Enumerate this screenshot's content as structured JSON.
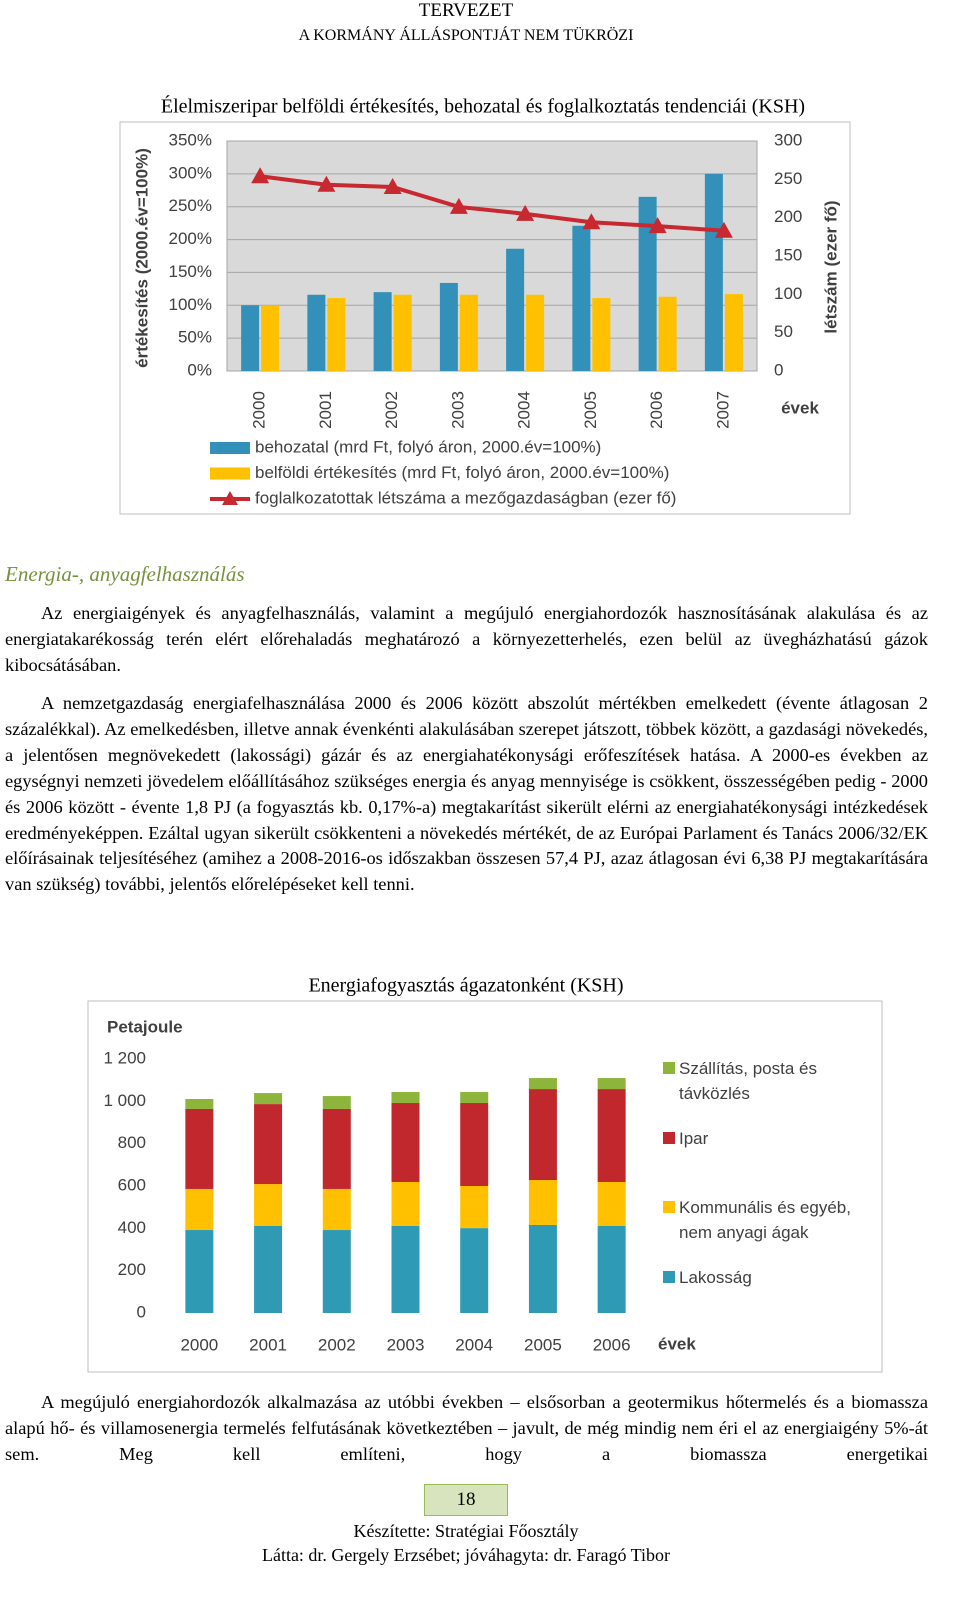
{
  "header": {
    "line1": "TERVEZET",
    "line2": "A KORMÁNY ÁLLÁSPONTJÁT NEM TÜKRÖZI"
  },
  "chart_data": [
    {
      "type": "bar_line",
      "title": "Élelmiszeripar belföldi értékesítés, behozatal és foglalkoztatás tendenciái (KSH)",
      "y_axis_label": "értékesítés (2000.év=100%)",
      "y2_axis_label": "létszám (ezer fő)",
      "x_axis_label": "évek",
      "categories": [
        "2000",
        "2001",
        "2002",
        "2003",
        "2004",
        "2005",
        "2006",
        "2007"
      ],
      "series": [
        {
          "name": "behozatal (mrd Ft, folyó áron, 2000.év=100%)",
          "color": "#3390b8",
          "type": "bar",
          "values": [
            100,
            116,
            120,
            134,
            186,
            221,
            265,
            300
          ]
        },
        {
          "name": "belföldi értékesítés (mrd Ft, folyó áron, 2000.év=100%)",
          "color": "#ffc000",
          "type": "bar",
          "values": [
            100,
            111,
            116,
            116,
            116,
            111,
            113,
            117
          ]
        },
        {
          "name": "foglalkozatottak létszáma a mezőgazdaságban (ezer fő)",
          "color": "#c8282f",
          "type": "line",
          "axis": "y2",
          "values": [
            254,
            243,
            240,
            214,
            205,
            194,
            189,
            183
          ]
        }
      ],
      "ylim": [
        0,
        350
      ],
      "yticks": [
        {
          "value": 0,
          "label": "0%"
        },
        {
          "value": 50,
          "label": "50%"
        },
        {
          "value": 100,
          "label": "100%"
        },
        {
          "value": 150,
          "label": "150%"
        },
        {
          "value": 200,
          "label": "200%"
        },
        {
          "value": 250,
          "label": "250%"
        },
        {
          "value": 300,
          "label": "300%"
        },
        {
          "value": 350,
          "label": "350%"
        }
      ],
      "y2lim": [
        0,
        300
      ],
      "y2ticks": [
        0,
        50,
        100,
        150,
        200,
        250,
        300
      ],
      "grid": true
    },
    {
      "type": "stacked_bar",
      "title": "Energiafogyasztás ágazatonként (KSH)",
      "y_axis_label": "Petajoule",
      "x_axis_label": "évek",
      "categories": [
        "2000",
        "2001",
        "2002",
        "2003",
        "2004",
        "2005",
        "2006"
      ],
      "series": [
        {
          "name": "Lakosság",
          "color": "#2f9ab3",
          "values": [
            392,
            411,
            392,
            411,
            401,
            416,
            411
          ]
        },
        {
          "name": "Kommunális és egyéb, nem anyagi ágak",
          "color": "#ffc000",
          "values": [
            194,
            198,
            194,
            208,
            199,
            212,
            208
          ]
        },
        {
          "name": "Ipar",
          "color": "#c0282e",
          "values": [
            378,
            378,
            378,
            373,
            392,
            430,
            439
          ]
        },
        {
          "name": "Szállítás, posta és távközlés",
          "color": "#8db53c",
          "values": [
            47,
            52,
            61,
            52,
            52,
            52,
            52
          ]
        }
      ],
      "ylim": [
        0,
        1200
      ],
      "yticks": [
        0,
        200,
        400,
        600,
        800,
        {
          "value": 1000,
          "label": "1 000"
        },
        {
          "value": 1200,
          "label": "1 200"
        }
      ],
      "grid": false
    }
  ],
  "section": {
    "heading": "Energia-, anyagfelhasználás",
    "paragraphs": [
      "Az energiaigények és anyagfelhasználás, valamint a megújuló energiahordozók hasznosításának alakulása és az energiatakarékosság terén elért előrehaladás meghatározó a környezetterhelés, ezen belül az üvegházhatású gázok kibocsátásában.",
      "A nemzetgazdaság energiafelhasználása 2000 és 2006 között abszolút mértékben emelkedett (évente átlagosan 2 százalékkal). Az emelkedésben, illetve annak évenkénti alakulásában szerepet játszott, többek között, a gazdasági növekedés, a jelentősen megnövekedett (lakossági) gázár és az energiahatékonysági erőfeszítések hatása. A 2000-es években az egységnyi nemzeti jövedelem előállításához szükséges energia és anyag mennyisége is csökkent, összességében pedig - 2000 és 2006 között - évente 1,8 PJ (a fogyasztás kb. 0,17%-a) megtakarítást sikerült elérni az energiahatékonysági intézkedések eredményeképpen. Ezáltal ugyan sikerült csökkenteni a növekedés mértékét, de az Európai Parlament és Tanács 2006/32/EK előírásainak teljesítéséhez (amihez a 2008-2016-os időszakban összesen 57,4 PJ, azaz átlagosan évi 6,38 PJ megtakarítására van szükség) további, jelentős előrelépéseket kell tenni."
    ]
  },
  "closing_paragraph": "A megújuló energiahordozók alkalmazása az utóbbi években – elsősorban a geotermikus hőtermelés és a biomassza alapú hő- és villamosenergia termelés felfutásának következtében – javult, de még mindig nem éri el az energiaigény 5%-át sem. Meg kell említeni, hogy a biomassza energetikai",
  "footer": {
    "page": "18",
    "prepared": "Készítette: Stratégiai Főosztály",
    "approved": "Látta: dr. Gergely Erzsébet; jóváhagyta: dr. Faragó Tibor"
  }
}
